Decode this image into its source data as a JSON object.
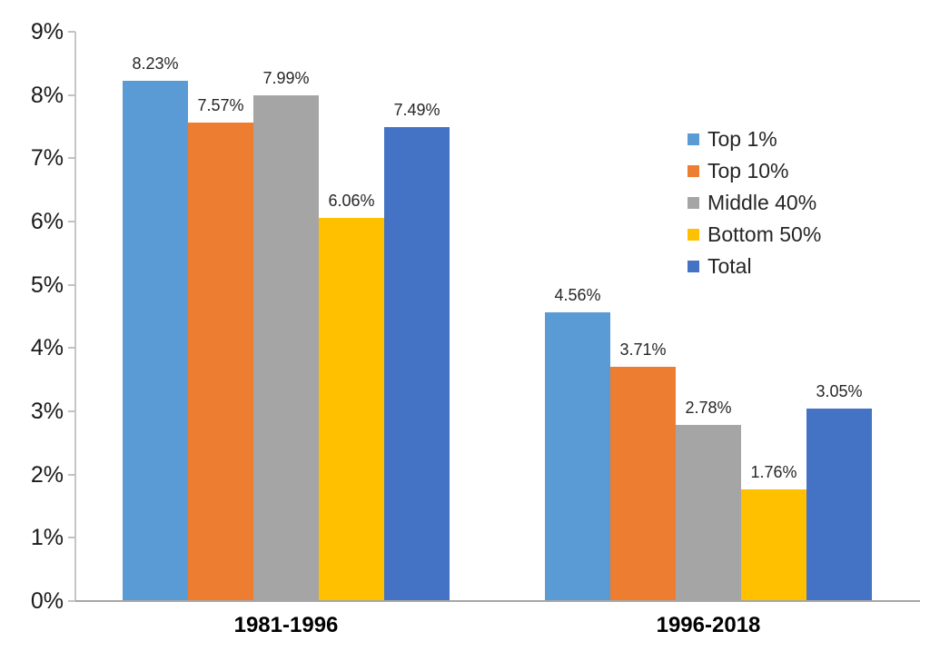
{
  "chart_data": {
    "type": "bar",
    "title": "",
    "xlabel": "",
    "ylabel": "",
    "grid": false,
    "categories": [
      "1981-1996",
      "1996-2018"
    ],
    "series": [
      {
        "name": "Top 1%",
        "color": "#5B9BD5",
        "values": [
          8.23,
          4.56
        ],
        "labels": [
          "8.23%",
          "4.56%"
        ]
      },
      {
        "name": "Top 10%",
        "color": "#ED7D31",
        "values": [
          7.57,
          3.71
        ],
        "labels": [
          "7.57%",
          "3.71%"
        ]
      },
      {
        "name": "Middle 40%",
        "color": "#A5A5A5",
        "values": [
          7.99,
          2.78
        ],
        "labels": [
          "7.99%",
          "2.78%"
        ]
      },
      {
        "name": "Bottom 50%",
        "color": "#FFC000",
        "values": [
          6.06,
          1.76
        ],
        "labels": [
          "6.06%",
          "1.76%"
        ]
      },
      {
        "name": "Total",
        "color": "#4472C4",
        "values": [
          7.49,
          3.05
        ],
        "labels": [
          "7.49%",
          "3.05%"
        ]
      }
    ],
    "y_axis": {
      "min": 0,
      "max": 9,
      "tick_step": 1,
      "tick_labels": [
        "0%",
        "1%",
        "2%",
        "3%",
        "4%",
        "5%",
        "6%",
        "7%",
        "8%",
        "9%"
      ]
    },
    "legend": {
      "position": "upper-right",
      "entries": [
        "Top 1%",
        "Top 10%",
        "Middle 40%",
        "Bottom 50%",
        "Total"
      ]
    },
    "colors": {
      "background": "#FFFFFF",
      "axis_line": "#C6C6C6",
      "baseline": "#A6A6A6",
      "tick_text": "#1A1A1A",
      "data_label_text": "#262626",
      "category_text": "#000000",
      "legend_text": "#262626"
    }
  }
}
